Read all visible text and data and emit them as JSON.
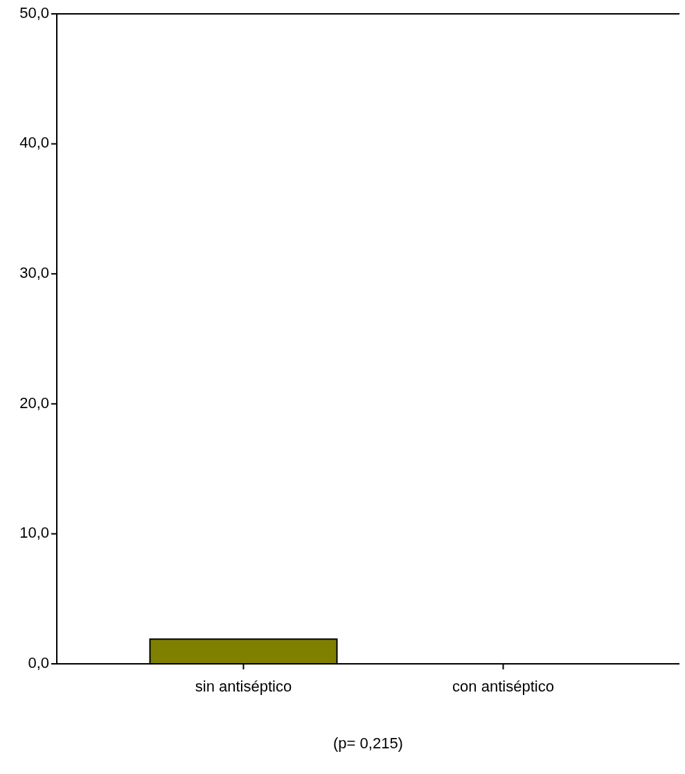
{
  "chart_data": {
    "type": "bar",
    "categories": [
      "sin antiséptico",
      "con antiséptico"
    ],
    "values": [
      1.9,
      0
    ],
    "color": "#808000",
    "ylim": [
      0,
      50
    ],
    "yticks": [
      {
        "value": 0,
        "label": "0,0"
      },
      {
        "value": 10,
        "label": "10,0"
      },
      {
        "value": 20,
        "label": "20,0"
      },
      {
        "value": 30,
        "label": "30,0"
      },
      {
        "value": 40,
        "label": "40,0"
      },
      {
        "value": 50,
        "label": "50,0"
      }
    ],
    "annotations": [
      "(p= 0,215)"
    ]
  }
}
